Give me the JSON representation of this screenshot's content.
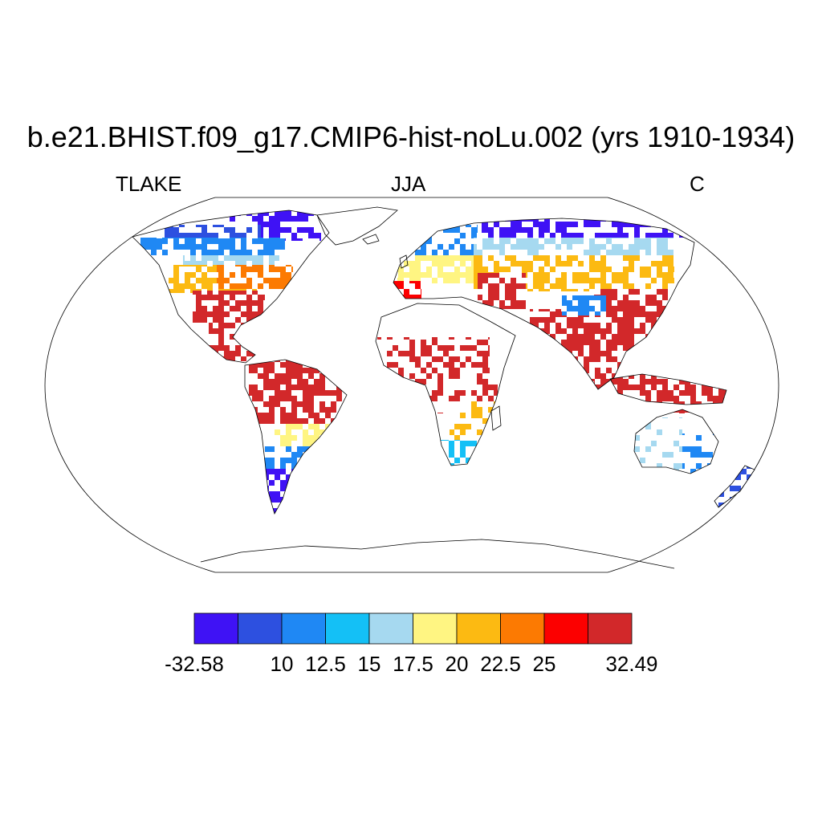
{
  "title": "b.e21.BHIST.f09_g17.CMIP6-hist-noLu.002 (yrs 1910-1934)",
  "subtitle_left": "TLAKE",
  "subtitle_center": "JJA",
  "subtitle_right": "C",
  "colorbar": {
    "colors": [
      "#3f12f5",
      "#2d50e0",
      "#1f88f4",
      "#14c0f6",
      "#a6d9f0",
      "#fff582",
      "#fcba12",
      "#fc7a02",
      "#fc0000",
      "#d2282a"
    ],
    "labels": [
      "-32.58",
      "10",
      "12.5",
      "15",
      "17.5",
      "20",
      "22.5",
      "25",
      "32.49"
    ]
  },
  "regions": [
    {
      "name": "canada-arctic",
      "color": "#3f12f5"
    },
    {
      "name": "canada-north",
      "color": "#2d50e0"
    },
    {
      "name": "canada-mid",
      "color": "#1f88f4"
    },
    {
      "name": "canada-south",
      "color": "#a6d9f0"
    },
    {
      "name": "us-north",
      "color": "#fcba12"
    },
    {
      "name": "us-great-lakes",
      "color": "#fc7a02"
    },
    {
      "name": "us-south",
      "color": "#d2282a"
    },
    {
      "name": "central-america",
      "color": "#d2282a"
    },
    {
      "name": "amazon",
      "color": "#d2282a"
    },
    {
      "name": "south-brazil",
      "color": "#fff582"
    },
    {
      "name": "argentina",
      "color": "#1f88f4"
    },
    {
      "name": "patagonia",
      "color": "#3f12f5"
    },
    {
      "name": "scandinavia",
      "color": "#1f88f4"
    },
    {
      "name": "europe",
      "color": "#fff582"
    },
    {
      "name": "iberia",
      "color": "#fc0000"
    },
    {
      "name": "siberia-north",
      "color": "#3f12f5"
    },
    {
      "name": "siberia",
      "color": "#a6d9f0"
    },
    {
      "name": "central-asia",
      "color": "#fcba12"
    },
    {
      "name": "middle-east",
      "color": "#d2282a"
    },
    {
      "name": "india",
      "color": "#d2282a"
    },
    {
      "name": "china",
      "color": "#d2282a"
    },
    {
      "name": "tibet",
      "color": "#1f88f4"
    },
    {
      "name": "southeast-asia",
      "color": "#d2282a"
    },
    {
      "name": "sahel",
      "color": "#d2282a"
    },
    {
      "name": "central-africa",
      "color": "#d2282a"
    },
    {
      "name": "east-africa",
      "color": "#fcba12"
    },
    {
      "name": "south-africa",
      "color": "#14c0f6"
    },
    {
      "name": "australia-sw",
      "color": "#a6d9f0"
    },
    {
      "name": "australia-se",
      "color": "#1f88f4"
    },
    {
      "name": "new-zealand",
      "color": "#2d50e0"
    }
  ]
}
